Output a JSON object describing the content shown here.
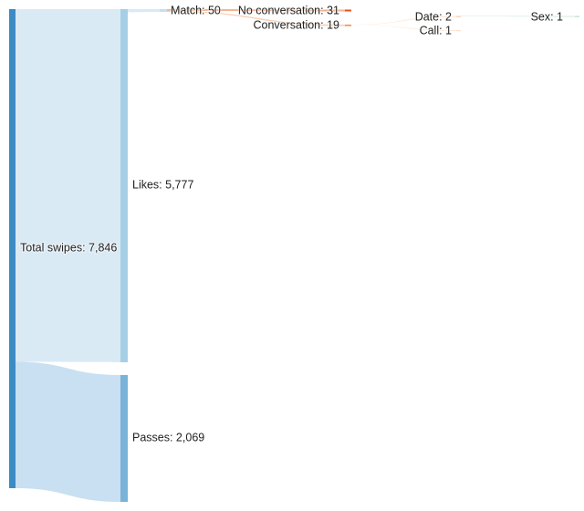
{
  "diagram": {
    "type": "sankey",
    "nodes": [
      {
        "id": "total",
        "label": "Total swipes: 7,846",
        "value": 7846,
        "color": "#3d8bc4"
      },
      {
        "id": "likes",
        "label": "Likes: 5,777",
        "value": 5777,
        "color": "#a6cfe6"
      },
      {
        "id": "passes",
        "label": "Passes: 2,069",
        "value": 2069,
        "color": "#7ab3d8"
      },
      {
        "id": "match",
        "label": "Match: 50",
        "value": 50,
        "color": "#c8def0"
      },
      {
        "id": "noconv",
        "label": "No conversation: 31",
        "value": 31,
        "color": "#e8501a"
      },
      {
        "id": "conv",
        "label": "Conversation: 19",
        "value": 19,
        "color": "#f08a3c"
      },
      {
        "id": "date",
        "label": "Date: 2",
        "value": 2,
        "color": "#f8c8a8"
      },
      {
        "id": "call",
        "label": "Call: 1",
        "value": 1,
        "color": "#fbe0cc"
      },
      {
        "id": "sex",
        "label": "Sex: 1",
        "value": 1,
        "color": "#b8dcc0"
      }
    ],
    "links": [
      {
        "source": "total",
        "target": "likes",
        "value": 5777,
        "color": "#d6e8f4"
      },
      {
        "source": "total",
        "target": "passes",
        "value": 2069,
        "color": "#c2ddef"
      },
      {
        "source": "likes",
        "target": "match",
        "value": 50,
        "color": "#d6e8f4"
      },
      {
        "source": "match",
        "target": "noconv",
        "value": 31,
        "color": "#f2a882"
      },
      {
        "source": "match",
        "target": "conv",
        "value": 19,
        "color": "#f8c8a8"
      },
      {
        "source": "conv",
        "target": "date",
        "value": 2,
        "color": "#fcdcc6"
      },
      {
        "source": "conv",
        "target": "call",
        "value": 1,
        "color": "#fde8da"
      },
      {
        "source": "date",
        "target": "sex",
        "value": 1,
        "color": "#cfe8d4"
      }
    ]
  }
}
